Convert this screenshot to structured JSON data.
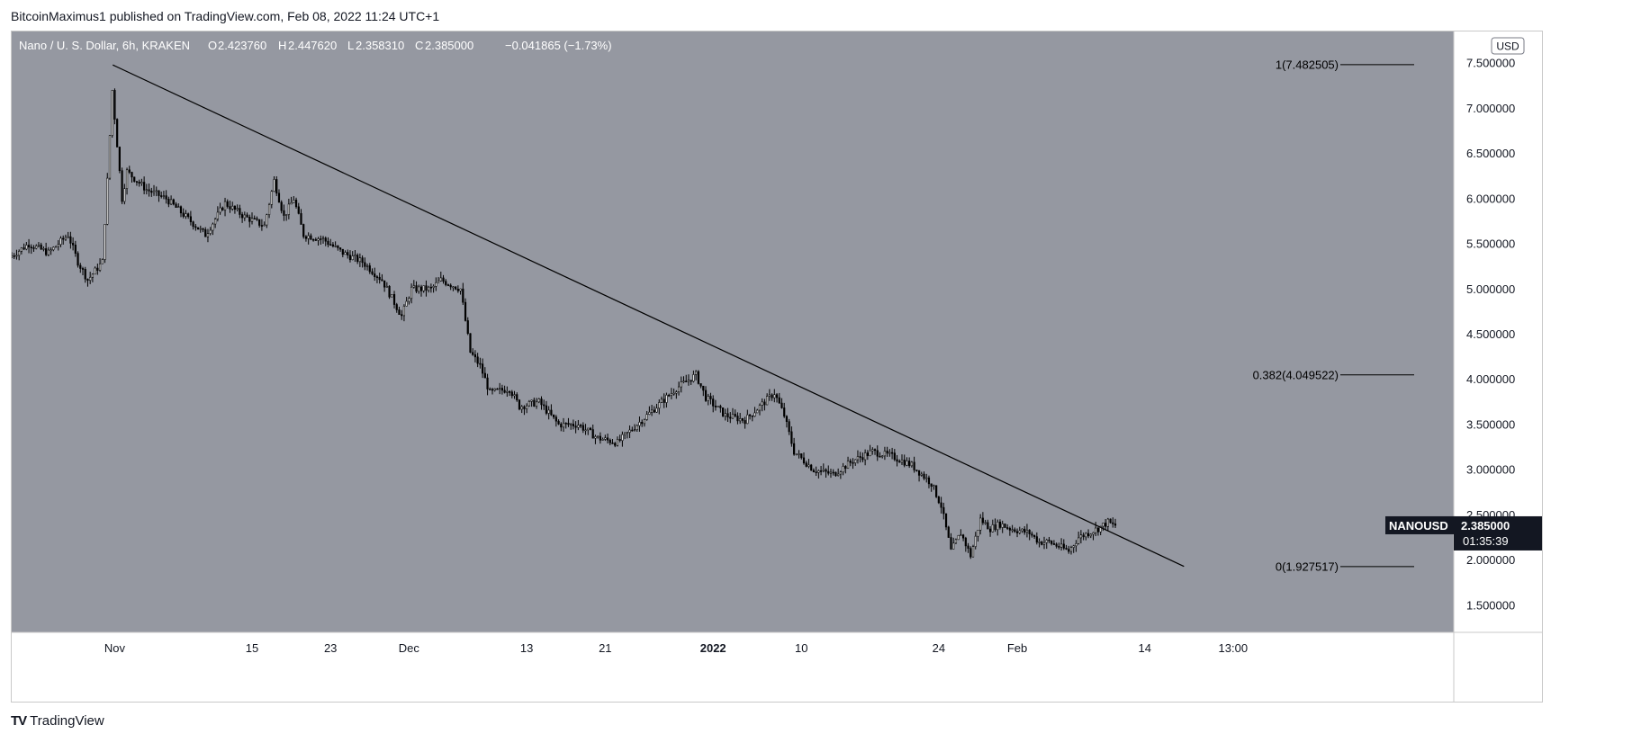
{
  "header": {
    "published": "BitcoinMaximus1 published on TradingView.com, Feb 08, 2022 11:24 UTC+1"
  },
  "footer": {
    "logo_mark": "TV",
    "logo_text": "TradingView"
  },
  "colors": {
    "plot_bg": "#9598a1",
    "candle": "#000000",
    "trendline": "#000000",
    "price_tag_bg": "#131722"
  },
  "chart_data": {
    "type": "candlestick",
    "symbol_line": {
      "name": "Nano / U. S. Dollar, 6h, KRAKEN",
      "o_label": "O",
      "o_value": "2.423760",
      "h_label": "H",
      "h_value": "2.447620",
      "l_label": "L",
      "l_value": "2.358310",
      "c_label": "C",
      "c_value": "2.385000",
      "change": "−0.041865 (−1.73%)"
    },
    "currency": "USD",
    "ylim": [
      1.2,
      7.85
    ],
    "y_ticks": [
      "1.500000",
      "2.000000",
      "2.500000",
      "3.000000",
      "3.500000",
      "4.000000",
      "4.500000",
      "5.000000",
      "5.500000",
      "6.000000",
      "6.500000",
      "7.000000",
      "7.500000"
    ],
    "y_tick_values": [
      1.5,
      2.0,
      2.5,
      3.0,
      3.5,
      4.0,
      4.5,
      5.0,
      5.5,
      6.0,
      6.5,
      7.0,
      7.5
    ],
    "x_range_days": [
      0,
      147
    ],
    "x_ticks": [
      {
        "label": "Nov",
        "day": 10.5,
        "bold": false
      },
      {
        "label": "15",
        "day": 24.5,
        "bold": false
      },
      {
        "label": "23",
        "day": 32.5,
        "bold": false
      },
      {
        "label": "Dec",
        "day": 40.5,
        "bold": false
      },
      {
        "label": "13",
        "day": 52.5,
        "bold": false
      },
      {
        "label": "21",
        "day": 60.5,
        "bold": false
      },
      {
        "label": "2022",
        "day": 71.5,
        "bold": true
      },
      {
        "label": "10",
        "day": 80.5,
        "bold": false
      },
      {
        "label": "24",
        "day": 94.5,
        "bold": false
      },
      {
        "label": "Feb",
        "day": 102.5,
        "bold": false
      },
      {
        "label": "14",
        "day": 115.5,
        "bold": false
      },
      {
        "label": "13:00",
        "day": 124.5,
        "bold": false
      }
    ],
    "price_path": [
      [
        0,
        5.35
      ],
      [
        2,
        5.5
      ],
      [
        4,
        5.4
      ],
      [
        6,
        5.6
      ],
      [
        7,
        5.3
      ],
      [
        8,
        5.1
      ],
      [
        9.5,
        5.3
      ],
      [
        10,
        6.2
      ],
      [
        10.5,
        7.2
      ],
      [
        11,
        6.6
      ],
      [
        11.5,
        6.0
      ],
      [
        12,
        6.3
      ],
      [
        14,
        6.1
      ],
      [
        16,
        6.0
      ],
      [
        18,
        5.8
      ],
      [
        20,
        5.6
      ],
      [
        22,
        5.95
      ],
      [
        24,
        5.8
      ],
      [
        26,
        5.7
      ],
      [
        27,
        6.2
      ],
      [
        28,
        5.8
      ],
      [
        29,
        6.0
      ],
      [
        30,
        5.6
      ],
      [
        32,
        5.55
      ],
      [
        34,
        5.4
      ],
      [
        36,
        5.3
      ],
      [
        38,
        5.1
      ],
      [
        39,
        4.9
      ],
      [
        40,
        4.7
      ],
      [
        41,
        5.0
      ],
      [
        43,
        5.0
      ],
      [
        44,
        5.1
      ],
      [
        46,
        5.0
      ],
      [
        47,
        4.3
      ],
      [
        48,
        4.15
      ],
      [
        49,
        3.85
      ],
      [
        51,
        3.9
      ],
      [
        52,
        3.7
      ],
      [
        54,
        3.75
      ],
      [
        56,
        3.5
      ],
      [
        58,
        3.5
      ],
      [
        60,
        3.35
      ],
      [
        62,
        3.3
      ],
      [
        64,
        3.5
      ],
      [
        66,
        3.7
      ],
      [
        68,
        3.9
      ],
      [
        70,
        4.05
      ],
      [
        71,
        3.8
      ],
      [
        73,
        3.6
      ],
      [
        75,
        3.55
      ],
      [
        77,
        3.75
      ],
      [
        78,
        3.85
      ],
      [
        79,
        3.6
      ],
      [
        80,
        3.2
      ],
      [
        82,
        3.0
      ],
      [
        84,
        2.95
      ],
      [
        86,
        3.1
      ],
      [
        88,
        3.2
      ],
      [
        90,
        3.15
      ],
      [
        92,
        3.05
      ],
      [
        94,
        2.85
      ],
      [
        95,
        2.6
      ],
      [
        96,
        2.1
      ],
      [
        97,
        2.3
      ],
      [
        98,
        2.05
      ],
      [
        99,
        2.45
      ],
      [
        100,
        2.35
      ],
      [
        101,
        2.4
      ],
      [
        102,
        2.35
      ],
      [
        104,
        2.3
      ],
      [
        105,
        2.2
      ],
      [
        106,
        2.2
      ],
      [
        107,
        2.15
      ],
      [
        108,
        2.1
      ],
      [
        109,
        2.25
      ],
      [
        110,
        2.3
      ],
      [
        111,
        2.35
      ],
      [
        112,
        2.42
      ],
      [
        112.5,
        2.385
      ]
    ],
    "trendline": {
      "from": [
        10.3,
        7.48
      ],
      "to": [
        119.5,
        1.93
      ]
    },
    "fib_levels": [
      {
        "label": "1(7.482505)",
        "value": 7.482505
      },
      {
        "label": "0.382(4.049522)",
        "value": 4.049522
      },
      {
        "label": "0(1.927517)",
        "value": 1.927517
      }
    ],
    "last_price": {
      "symbol": "NANOUSD",
      "price": "2.385000",
      "value": 2.385,
      "countdown": "01:35:39"
    }
  }
}
